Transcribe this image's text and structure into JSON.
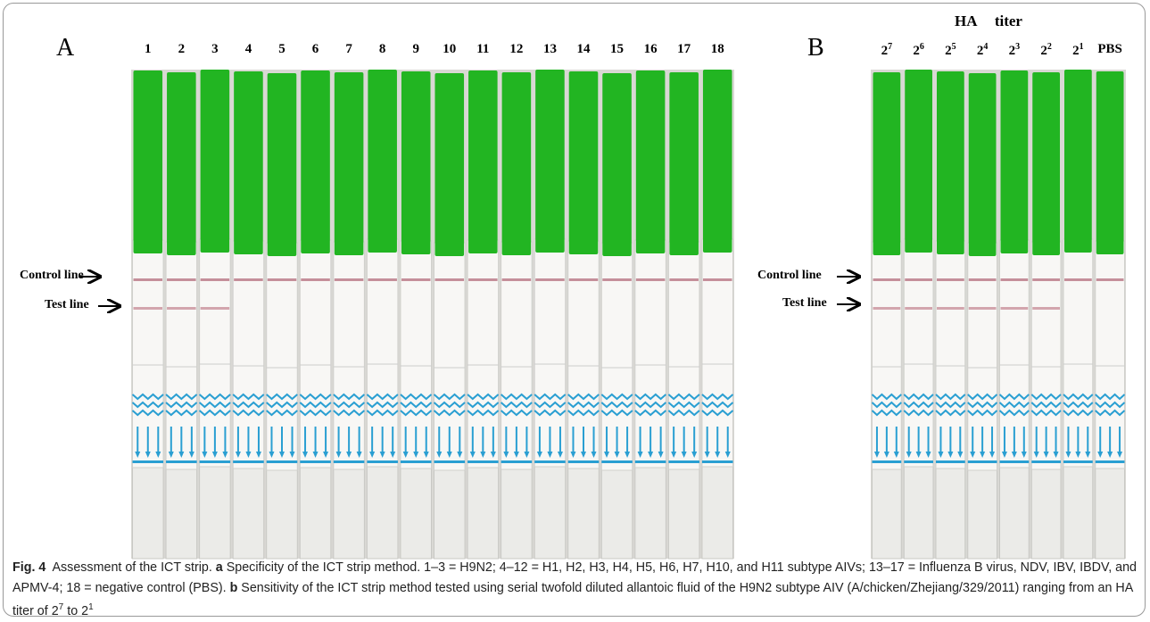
{
  "panel_a": {
    "label": "A",
    "lanes": [
      "1",
      "2",
      "3",
      "4",
      "5",
      "6",
      "7",
      "8",
      "9",
      "10",
      "11",
      "12",
      "13",
      "14",
      "15",
      "16",
      "17",
      "18"
    ],
    "control_line": "Control line",
    "test_line": "Test line"
  },
  "panel_b": {
    "label": "B",
    "header": [
      "HA",
      "titer"
    ],
    "lanes": [
      {
        "base": "2",
        "exp": "7"
      },
      {
        "base": "2",
        "exp": "6"
      },
      {
        "base": "2",
        "exp": "5"
      },
      {
        "base": "2",
        "exp": "4"
      },
      {
        "base": "2",
        "exp": "3"
      },
      {
        "base": "2",
        "exp": "2"
      },
      {
        "base": "2",
        "exp": "1"
      },
      "PBS"
    ],
    "control_line": "Control line",
    "test_line": "Test line"
  },
  "caption": {
    "figure": "Fig. 4",
    "title": "Assessment of the ICT strip.",
    "a_label": "a",
    "a_text": "Specificity of the ICT strip method. 1–3 = H9N2; 4–12 = H1, H2, H3, H4, H5, H6, H7, H10, and H11 subtype AIVs; 13–17 = Influenza B virus, NDV, IBV, IBDV, and APMV-4; 18 = negative control (PBS).",
    "b_label": "b",
    "b_text": "Sensitivity of the ICT strip method tested using serial twofold diluted allantoic fluid of the H9N2 subtype AIV (A/chicken/Zhejiang/329/2011) ranging from an HA titer of",
    "titer_high": {
      "base": "2",
      "exp": "7"
    },
    "to": "to",
    "titer_low": {
      "base": "2",
      "exp": "1"
    }
  }
}
